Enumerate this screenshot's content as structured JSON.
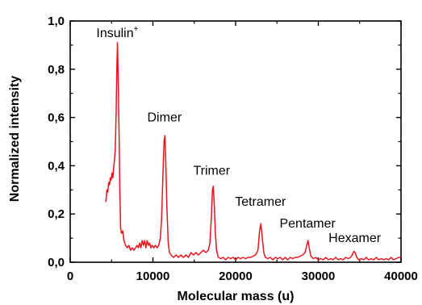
{
  "chart_data": {
    "type": "line",
    "xlabel": "Molecular mass (u)",
    "ylabel": "Normalized intensity",
    "xlim": [
      0,
      40000
    ],
    "ylim": [
      0,
      1.0
    ],
    "x_ticks": [
      "0",
      "10000",
      "20000",
      "30000",
      "40000"
    ],
    "y_ticks": [
      "0,0",
      "0,2",
      "0,4",
      "0,6",
      "0,8",
      "1,0"
    ],
    "line_color": "#e8141c",
    "annotations": [
      {
        "text": "Insulin",
        "superscript": "+",
        "x": 5700,
        "y": 0.92
      },
      {
        "text": "Dimer",
        "x": 11400,
        "y": 0.57
      },
      {
        "text": "Trimer",
        "x": 17100,
        "y": 0.35
      },
      {
        "text": "Tetramer",
        "x": 23000,
        "y": 0.22
      },
      {
        "text": "Pentamer",
        "x": 28700,
        "y": 0.13
      },
      {
        "text": "Hexamer",
        "x": 34400,
        "y": 0.07
      }
    ],
    "series": [
      {
        "values": [
          [
            4300,
            0.25
          ],
          [
            4450,
            0.3
          ],
          [
            4550,
            0.29
          ],
          [
            4650,
            0.33
          ],
          [
            4750,
            0.32
          ],
          [
            4850,
            0.35
          ],
          [
            4950,
            0.34
          ],
          [
            5050,
            0.37
          ],
          [
            5150,
            0.35
          ],
          [
            5250,
            0.39
          ],
          [
            5350,
            0.42
          ],
          [
            5450,
            0.47
          ],
          [
            5550,
            0.62
          ],
          [
            5650,
            0.82
          ],
          [
            5720,
            0.91
          ],
          [
            5800,
            0.78
          ],
          [
            5900,
            0.55
          ],
          [
            6000,
            0.3
          ],
          [
            6100,
            0.14
          ],
          [
            6200,
            0.12
          ],
          [
            6350,
            0.13
          ],
          [
            6500,
            0.09
          ],
          [
            6700,
            0.07
          ],
          [
            6900,
            0.06
          ],
          [
            7100,
            0.07
          ],
          [
            7300,
            0.05
          ],
          [
            7500,
            0.06
          ],
          [
            7700,
            0.05
          ],
          [
            7900,
            0.06
          ],
          [
            8100,
            0.07
          ],
          [
            8250,
            0.06
          ],
          [
            8400,
            0.08
          ],
          [
            8550,
            0.06
          ],
          [
            8700,
            0.09
          ],
          [
            8850,
            0.07
          ],
          [
            9000,
            0.09
          ],
          [
            9150,
            0.06
          ],
          [
            9300,
            0.09
          ],
          [
            9450,
            0.07
          ],
          [
            9600,
            0.08
          ],
          [
            9750,
            0.06
          ],
          [
            9900,
            0.07
          ],
          [
            10100,
            0.06
          ],
          [
            10300,
            0.07
          ],
          [
            10500,
            0.06
          ],
          [
            10700,
            0.07
          ],
          [
            10900,
            0.1
          ],
          [
            11050,
            0.18
          ],
          [
            11200,
            0.35
          ],
          [
            11350,
            0.5
          ],
          [
            11450,
            0.525
          ],
          [
            11550,
            0.42
          ],
          [
            11700,
            0.22
          ],
          [
            11850,
            0.08
          ],
          [
            12000,
            0.04
          ],
          [
            12200,
            0.03
          ],
          [
            12500,
            0.02
          ],
          [
            12800,
            0.03
          ],
          [
            13100,
            0.02
          ],
          [
            13400,
            0.03
          ],
          [
            13700,
            0.02
          ],
          [
            14000,
            0.03
          ],
          [
            14300,
            0.02
          ],
          [
            14600,
            0.04
          ],
          [
            14900,
            0.03
          ],
          [
            15200,
            0.04
          ],
          [
            15500,
            0.03
          ],
          [
            15800,
            0.04
          ],
          [
            16100,
            0.05
          ],
          [
            16400,
            0.04
          ],
          [
            16700,
            0.05
          ],
          [
            16900,
            0.08
          ],
          [
            17050,
            0.18
          ],
          [
            17200,
            0.3
          ],
          [
            17300,
            0.315
          ],
          [
            17400,
            0.25
          ],
          [
            17550,
            0.12
          ],
          [
            17700,
            0.05
          ],
          [
            17900,
            0.02
          ],
          [
            18200,
            0.015
          ],
          [
            18500,
            0.02
          ],
          [
            18800,
            0.01
          ],
          [
            19100,
            0.02
          ],
          [
            19400,
            0.015
          ],
          [
            19700,
            0.02
          ],
          [
            20000,
            0.01
          ],
          [
            20300,
            0.02
          ],
          [
            20600,
            0.015
          ],
          [
            20900,
            0.02
          ],
          [
            21200,
            0.015
          ],
          [
            21500,
            0.02
          ],
          [
            21800,
            0.02
          ],
          [
            22100,
            0.025
          ],
          [
            22400,
            0.03
          ],
          [
            22700,
            0.05
          ],
          [
            22900,
            0.13
          ],
          [
            23050,
            0.16
          ],
          [
            23200,
            0.11
          ],
          [
            23400,
            0.04
          ],
          [
            23600,
            0.02
          ],
          [
            23900,
            0.015
          ],
          [
            24200,
            0.02
          ],
          [
            24500,
            0.01
          ],
          [
            24800,
            0.02
          ],
          [
            25100,
            0.015
          ],
          [
            25400,
            0.02
          ],
          [
            25700,
            0.01
          ],
          [
            26000,
            0.02
          ],
          [
            26300,
            0.01
          ],
          [
            26600,
            0.02
          ],
          [
            26900,
            0.015
          ],
          [
            27200,
            0.02
          ],
          [
            27500,
            0.02
          ],
          [
            27800,
            0.025
          ],
          [
            28100,
            0.03
          ],
          [
            28400,
            0.04
          ],
          [
            28600,
            0.07
          ],
          [
            28750,
            0.09
          ],
          [
            28900,
            0.06
          ],
          [
            29100,
            0.025
          ],
          [
            29400,
            0.015
          ],
          [
            29700,
            0.02
          ],
          [
            30000,
            0.01
          ],
          [
            30300,
            0.015
          ],
          [
            30600,
            0.01
          ],
          [
            30900,
            0.02
          ],
          [
            31200,
            0.01
          ],
          [
            31500,
            0.015
          ],
          [
            31800,
            0.01
          ],
          [
            32100,
            0.02
          ],
          [
            32400,
            0.01
          ],
          [
            32700,
            0.015
          ],
          [
            33000,
            0.01
          ],
          [
            33300,
            0.02
          ],
          [
            33600,
            0.015
          ],
          [
            33900,
            0.02
          ],
          [
            34100,
            0.03
          ],
          [
            34300,
            0.045
          ],
          [
            34450,
            0.04
          ],
          [
            34650,
            0.02
          ],
          [
            34900,
            0.01
          ],
          [
            35200,
            0.015
          ],
          [
            35500,
            0.01
          ],
          [
            35800,
            0.02
          ],
          [
            36100,
            0.01
          ],
          [
            36400,
            0.015
          ],
          [
            36700,
            0.01
          ],
          [
            37000,
            0.02
          ],
          [
            37300,
            0.01
          ],
          [
            37600,
            0.015
          ],
          [
            37900,
            0.01
          ],
          [
            38200,
            0.015
          ],
          [
            38500,
            0.01
          ],
          [
            38800,
            0.02
          ],
          [
            39100,
            0.01
          ],
          [
            39400,
            0.015
          ],
          [
            39700,
            0.02
          ],
          [
            40000,
            0.02
          ]
        ]
      }
    ]
  }
}
